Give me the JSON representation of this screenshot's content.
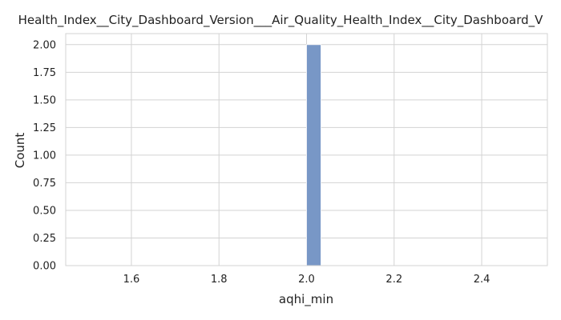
{
  "chart_data": {
    "type": "bar",
    "title": "Health_Index__City_Dashboard_Version___Air_Quality_Health_Index__City_Dashboard_V",
    "xlabel": "aqhi_min",
    "ylabel": "Count",
    "xlim": [
      1.45,
      2.55
    ],
    "ylim": [
      0,
      2.1
    ],
    "xticks": [
      "1.6",
      "1.8",
      "2.0",
      "2.2",
      "2.4"
    ],
    "yticks": [
      "0.00",
      "0.25",
      "0.50",
      "0.75",
      "1.00",
      "1.25",
      "1.50",
      "1.75",
      "2.00"
    ],
    "bins": [
      {
        "x0": 2.0,
        "x1": 2.033,
        "count": 2
      }
    ],
    "grid": true,
    "bar_color": "#7897c6",
    "grid_color": "#d3d3d3"
  }
}
